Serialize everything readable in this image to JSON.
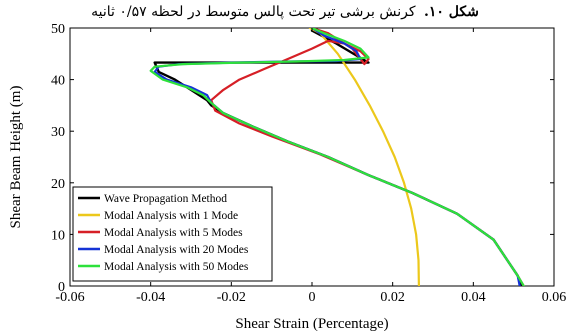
{
  "caption": {
    "label": "شکل ۱۰.",
    "text": "کرنش برشی تیر تحت پالس متوسط در لحظه ۰/۵۷ ثانیه"
  },
  "chart_data": {
    "type": "line",
    "title": "",
    "xlabel": "Shear Strain (Percentage)",
    "ylabel": "Shear Beam Height (m)",
    "xlim": [
      -0.06,
      0.06
    ],
    "ylim": [
      0,
      50
    ],
    "xticks": [
      "-0.06",
      "-0.04",
      "-0.02",
      "0",
      "0.02",
      "0.04",
      "0.06"
    ],
    "yticks": [
      "0",
      "10",
      "20",
      "30",
      "40",
      "50"
    ],
    "grid": false,
    "legend_position": "bottom-left",
    "series": [
      {
        "name": "Wave Propagation Method",
        "color": "#000000",
        "x": [
          0.0518,
          0.051,
          0.045,
          0.036,
          0.025,
          0.014,
          0.004,
          -0.006,
          -0.015,
          -0.022,
          -0.025,
          -0.026,
          -0.028,
          -0.03,
          -0.034,
          -0.038,
          -0.039,
          -0.03,
          -0.01,
          0.006,
          0.014,
          0.006,
          0.0,
          0.001
        ],
        "y": [
          0,
          2,
          9,
          14,
          18,
          21.5,
          25,
          28,
          31,
          33.5,
          35,
          36,
          37,
          38,
          40,
          41.5,
          43.3,
          43.3,
          43.3,
          43.3,
          43.3,
          47,
          49.5,
          50
        ]
      },
      {
        "name": "Modal Analysis with 1 Mode",
        "color": "#ecc81b",
        "x": [
          0.0265,
          0.0264,
          0.0258,
          0.0246,
          0.0228,
          0.0205,
          0.0176,
          0.0143,
          0.0106,
          0.0064,
          0.002,
          -0.0005
        ],
        "y": [
          0,
          5,
          10,
          15,
          20,
          25,
          30,
          35,
          40,
          45,
          49,
          50
        ]
      },
      {
        "name": "Modal Analysis with 5 Modes",
        "color": "#d61f26",
        "x": [
          0.0525,
          0.051,
          0.045,
          0.036,
          0.025,
          0.014,
          0.002,
          -0.01,
          -0.018,
          -0.024,
          -0.025,
          -0.022,
          -0.018,
          -0.012,
          -0.006,
          0.0,
          0.004,
          0.008,
          0.012,
          0.014,
          0.013,
          0.01,
          0.004,
          0.0
        ],
        "y": [
          0,
          2,
          9,
          14,
          18,
          21.5,
          25.5,
          29,
          31.5,
          34,
          36,
          38,
          40,
          42,
          44,
          46,
          47.5,
          47,
          45.5,
          44,
          43,
          46,
          49,
          50
        ]
      },
      {
        "name": "Modal Analysis with 20 Modes",
        "color": "#1533d6",
        "x": [
          0.0515,
          0.051,
          0.045,
          0.036,
          0.025,
          0.014,
          0.004,
          -0.006,
          -0.015,
          -0.022,
          -0.025,
          -0.026,
          -0.03,
          -0.036,
          -0.039,
          -0.038,
          -0.033,
          -0.02,
          -0.006,
          0.006,
          0.012,
          0.011,
          0.008,
          0.003,
          0.0
        ],
        "y": [
          0,
          2,
          9,
          14,
          18,
          21.5,
          25,
          28,
          31,
          33.5,
          35.5,
          37,
          38.5,
          40,
          41.5,
          42.5,
          43,
          43.3,
          43.5,
          43.6,
          44,
          45.5,
          47,
          48.5,
          50
        ]
      },
      {
        "name": "Modal Analysis with 50 Modes",
        "color": "#2de13b",
        "x": [
          0.0525,
          0.051,
          0.045,
          0.036,
          0.025,
          0.014,
          0.004,
          -0.006,
          -0.015,
          -0.022,
          -0.025,
          -0.027,
          -0.031,
          -0.037,
          -0.04,
          -0.039,
          -0.032,
          -0.018,
          -0.004,
          0.008,
          0.014,
          0.012,
          0.008,
          0.003,
          0.0
        ],
        "y": [
          0,
          2,
          9,
          14,
          18,
          21.5,
          25,
          28,
          31,
          33.5,
          35.5,
          37,
          38.5,
          40,
          41.7,
          42.5,
          43,
          43.3,
          43.5,
          43.8,
          44.3,
          46,
          47.5,
          49,
          50
        ]
      }
    ]
  }
}
